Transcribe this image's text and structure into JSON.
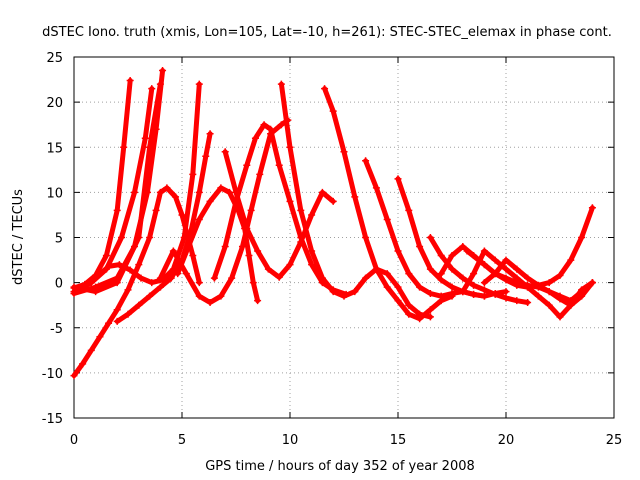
{
  "chart_data": {
    "type": "scatter",
    "title": "dSTEC Iono. truth (xmis, Lon=105, Lat=-10, h=261): STEC-STEC_elemax in phase cont.",
    "xlabel": "GPS time / hours of day 352 of year 2008",
    "ylabel": "dSTEC  / TECUs",
    "xlim": [
      0,
      25
    ],
    "ylim": [
      -15,
      25
    ],
    "xticks": [
      0,
      5,
      10,
      15,
      20,
      25
    ],
    "yticks": [
      -15,
      -10,
      -5,
      0,
      5,
      10,
      15,
      20,
      25
    ],
    "grid": true,
    "marker": "+",
    "color": "#ff0000",
    "series": [
      {
        "x": [
          0,
          0.5,
          1,
          1.5,
          2,
          2.3,
          2.6
        ],
        "y": [
          -0.6,
          -0.2,
          0.8,
          3,
          8,
          15,
          22.4
        ]
      },
      {
        "x": [
          0,
          0.8,
          1.5,
          2.2,
          2.8,
          3.3,
          3.6
        ],
        "y": [
          -1,
          0,
          1.5,
          5,
          10,
          16,
          21.5
        ]
      },
      {
        "x": [
          0,
          1,
          2,
          2.8,
          3.4,
          3.8,
          4.1
        ],
        "y": [
          -1.2,
          -0.5,
          0.5,
          4,
          10,
          17,
          23.5
        ]
      },
      {
        "x": [
          0,
          1,
          2,
          3,
          3.5,
          4
        ],
        "y": [
          -0.5,
          -1,
          0,
          5,
          15,
          22
        ]
      },
      {
        "x": [
          0,
          0.4,
          0.8,
          1.2,
          1.6,
          2.0,
          2.5,
          3,
          3.5,
          3.8,
          4.0,
          4.3,
          4.7,
          5.0,
          5.5,
          5.8
        ],
        "y": [
          -10.3,
          -9,
          -7.5,
          -6,
          -4.5,
          -3,
          -0.8,
          2,
          5,
          8,
          10,
          10.5,
          9.5,
          7.5,
          3,
          0
        ]
      },
      {
        "x": [
          1,
          1.6,
          2.1,
          2.6,
          3.1,
          3.6,
          4.1,
          4.6,
          5.1,
          5.5,
          5.8
        ],
        "y": [
          0.5,
          1.8,
          2,
          1.4,
          0.5,
          0,
          0.3,
          1.5,
          5,
          12,
          22
        ]
      },
      {
        "x": [
          2,
          2.5,
          3,
          3.5,
          4,
          4.5,
          5,
          5.4,
          5.8,
          6.1,
          6.3
        ],
        "y": [
          -4.3,
          -3.5,
          -2.5,
          -1.5,
          -0.5,
          0.5,
          2.5,
          5.5,
          10,
          14,
          16.5
        ]
      },
      {
        "x": [
          4,
          4.6,
          5.2,
          5.8,
          6.3,
          6.8,
          7.3,
          7.8,
          8.2,
          8.6,
          9.1,
          9.6,
          9.9
        ],
        "y": [
          0.5,
          3.5,
          1,
          -1.5,
          -2.2,
          -1.5,
          0.5,
          4,
          8,
          12,
          16.5,
          17.5,
          18
        ]
      },
      {
        "x": [
          4.8,
          5.3,
          5.8,
          6.3,
          6.8,
          7.2,
          7.6,
          7.9,
          8.1,
          8.3,
          8.5
        ],
        "y": [
          1,
          4,
          7,
          9,
          10.5,
          10,
          8,
          6,
          3,
          0,
          -2
        ]
      },
      {
        "x": [
          6.5,
          7,
          7.5,
          8,
          8.4,
          8.8,
          9.1,
          9.5,
          10,
          10.5,
          11,
          11.5,
          12,
          12.6
        ],
        "y": [
          0.5,
          4,
          9,
          13,
          16,
          17.5,
          17,
          13,
          9,
          5,
          2,
          0,
          -0.8,
          -1.3
        ]
      },
      {
        "x": [
          7,
          7.5,
          8,
          8.5,
          9,
          9.5,
          10,
          10.5,
          11,
          11.5,
          12
        ],
        "y": [
          14.5,
          10,
          6,
          3.5,
          1.5,
          0.6,
          2,
          4.5,
          7.5,
          10,
          9
        ]
      },
      {
        "x": [
          9.6,
          10,
          10.5,
          11,
          11.5,
          12,
          12.5,
          13,
          13.5,
          14,
          14.5,
          15,
          15.5,
          16,
          16.5
        ],
        "y": [
          22,
          15,
          8,
          3.5,
          0.5,
          -1,
          -1.5,
          -1,
          0.5,
          1.5,
          1,
          -0.5,
          -2.5,
          -3.5,
          -3.8
        ]
      },
      {
        "x": [
          11.6,
          12,
          12.5,
          13,
          13.5,
          14,
          14.5,
          15,
          15.5,
          16,
          16.5,
          17,
          17.5
        ],
        "y": [
          21.5,
          19,
          14.5,
          9.5,
          5,
          1.5,
          -0.5,
          -2,
          -3.5,
          -4,
          -3,
          -2,
          -1.5
        ]
      },
      {
        "x": [
          13.5,
          14,
          14.5,
          15,
          15.5,
          16,
          16.5,
          17,
          17.5,
          18,
          18.5,
          19
        ],
        "y": [
          13.5,
          10.5,
          7,
          3.5,
          1,
          -0.5,
          -1.2,
          -1.5,
          -1.2,
          -1,
          -1.3,
          -1.5
        ]
      },
      {
        "x": [
          15,
          15.5,
          16,
          16.5,
          17,
          17.5,
          18,
          18.5,
          19,
          19.5,
          20
        ],
        "y": [
          11.5,
          8,
          4,
          1.5,
          0.3,
          -0.5,
          -1,
          -1.3,
          -1.5,
          -1.2,
          -1
        ]
      },
      {
        "x": [
          17,
          17.5,
          18,
          18.5,
          19,
          19.5,
          20,
          20.5,
          21,
          21.5,
          22,
          22.5,
          23,
          23.5,
          24
        ],
        "y": [
          1,
          3,
          4,
          3,
          2,
          1,
          0.3,
          -0.3,
          -0.5,
          -0.3,
          0,
          0.8,
          2.5,
          5,
          8.3
        ]
      },
      {
        "x": [
          18,
          18.5,
          19,
          19.5,
          20,
          20.5,
          21,
          21.5,
          22,
          22.5,
          23,
          23.5,
          24
        ],
        "y": [
          -1,
          1,
          3.5,
          2.5,
          1.5,
          0.5,
          -0.5,
          -1.5,
          -2.5,
          -3.8,
          -2.5,
          -0.8,
          0
        ]
      },
      {
        "x": [
          18.2,
          19,
          19.5,
          20,
          20.5,
          21,
          21.5,
          22,
          22.5,
          23,
          23.5,
          24
        ],
        "y": [
          3.5,
          2,
          1,
          0.5,
          0,
          -0.3,
          -0.5,
          -1,
          -1.5,
          -2,
          -1,
          0
        ]
      },
      {
        "x": [
          19,
          19.5,
          20,
          20.5,
          21,
          21.5,
          22,
          22.5,
          23,
          23.5,
          24
        ],
        "y": [
          0,
          1,
          2.5,
          1.5,
          0.5,
          -0.3,
          -1,
          -1.8,
          -2.5,
          -1.5,
          0
        ]
      },
      {
        "x": [
          16.5,
          17,
          17.5,
          18,
          18.5,
          19,
          19.5,
          20,
          20.5,
          21
        ],
        "y": [
          5,
          3,
          1.5,
          0.5,
          -0.3,
          -0.8,
          -1.3,
          -1.7,
          -2,
          -2.2
        ]
      }
    ]
  }
}
